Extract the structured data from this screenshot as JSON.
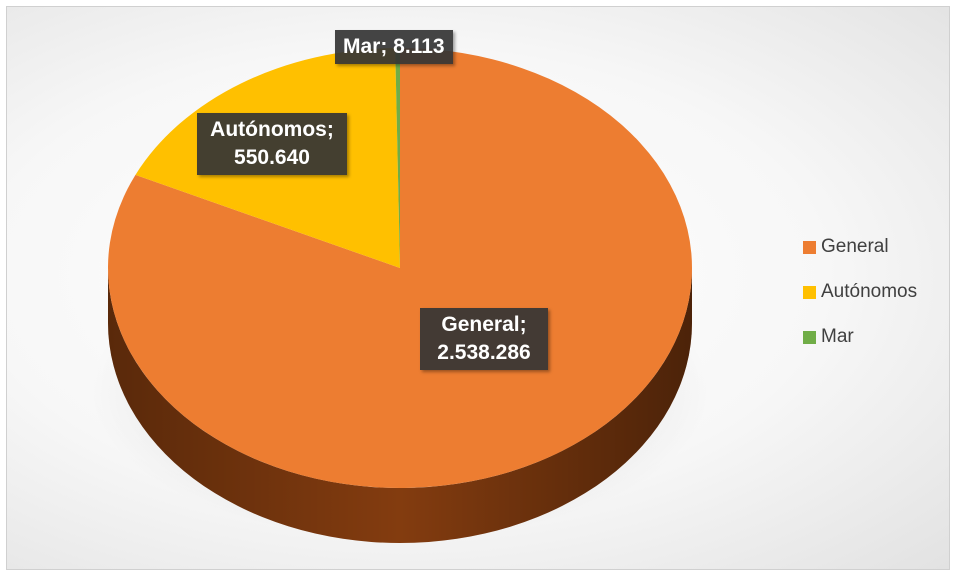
{
  "chart_data": {
    "type": "pie",
    "style": "3d",
    "title": "",
    "slices": [
      {
        "name": "General",
        "value": 2538286,
        "label": "General;\n2.538.286",
        "color": "#ED7D31",
        "dark": "#8A3F10"
      },
      {
        "name": "Autónomos",
        "value": 550640,
        "label": "Autónomos;\n550.640",
        "color": "#FFC000",
        "dark": "#9E7600"
      },
      {
        "name": "Mar",
        "value": 8113,
        "label": "Mar; 8.113",
        "color": "#70AD47",
        "dark": "#3F6A24"
      }
    ],
    "legend": {
      "position": "right",
      "items": [
        {
          "label": "General",
          "color": "#ED7D31"
        },
        {
          "label": "Autónomos",
          "color": "#FFC000"
        },
        {
          "label": "Mar",
          "color": "#70AD47"
        }
      ]
    }
  }
}
